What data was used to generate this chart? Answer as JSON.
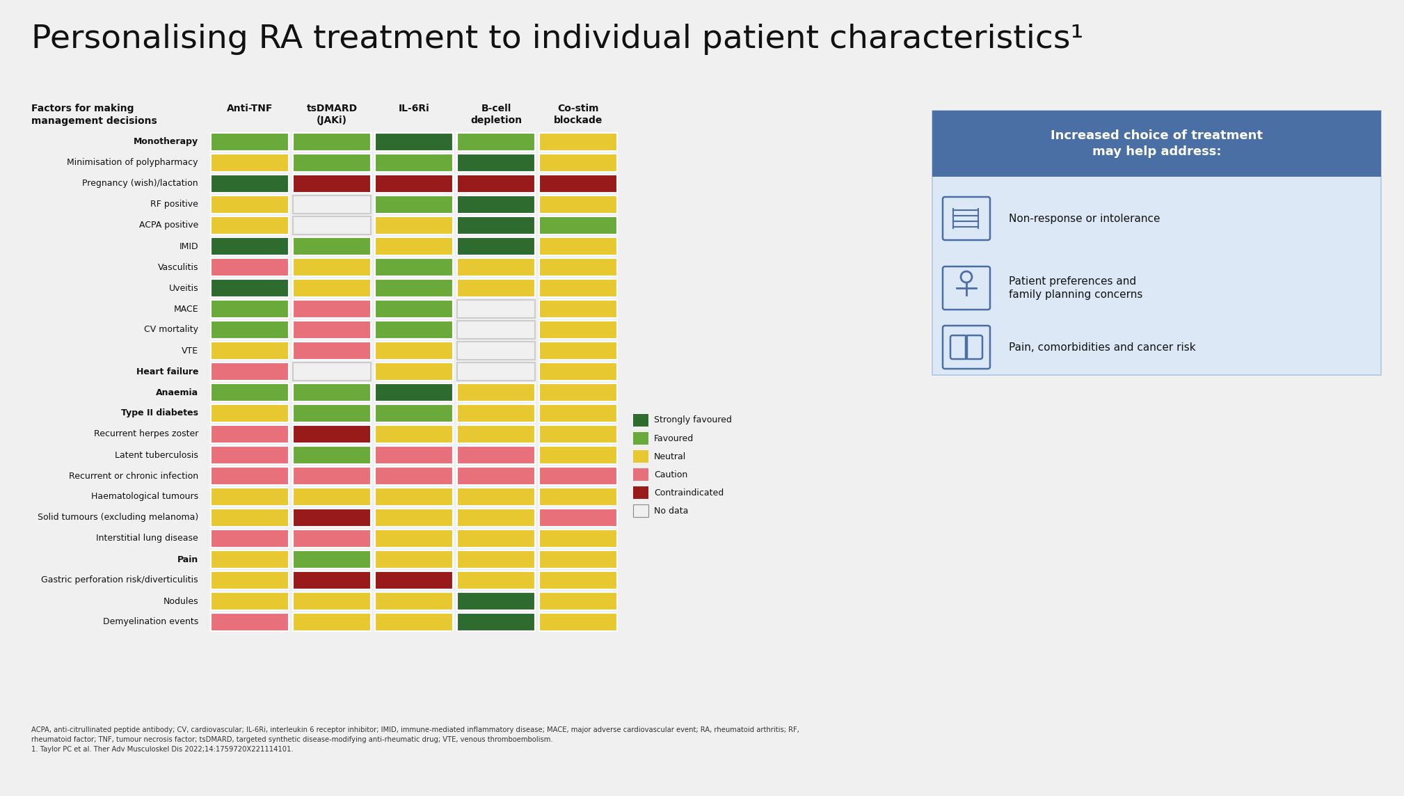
{
  "title": "Personalising RA treatment to individual patient characteristics¹",
  "background_color": "#f0f0f0",
  "col_headers": [
    "Anti-TNF",
    "tsDMARD\n(JAKi)",
    "IL-6Ri",
    "B-cell\ndepletion",
    "Co-stim\nblockade"
  ],
  "row_labels": [
    "Monotherapy",
    "Minimisation of polypharmacy",
    "Pregnancy (wish)/lactation",
    "RF positive",
    "ACPA positive",
    "IMID",
    "Vasculitis",
    "Uveitis",
    "MACE",
    "CV mortality",
    "VTE",
    "Heart failure",
    "Anaemia",
    "Type II diabetes",
    "Recurrent herpes zoster",
    "Latent tuberculosis",
    "Recurrent or chronic infection",
    "Haematological tumours",
    "Solid tumours (excluding melanoma)",
    "Interstitial lung disease",
    "Pain",
    "Gastric perforation risk/diverticulitis",
    "Nodules",
    "Demyelination events"
  ],
  "bold_rows": [
    0,
    11,
    12,
    13,
    20
  ],
  "colors": {
    "SF": "#2e6b2e",
    "F": "#6aaa3a",
    "N": "#e8c830",
    "C": "#e8707a",
    "CI": "#991a1a",
    "ND": "#f0f0f0"
  },
  "table_data": [
    [
      "F",
      "F",
      "SF",
      "F",
      "N"
    ],
    [
      "N",
      "F",
      "F",
      "SF",
      "N"
    ],
    [
      "SF",
      "CI",
      "CI",
      "CI",
      "CI"
    ],
    [
      "N",
      "ND",
      "F",
      "SF",
      "N"
    ],
    [
      "N",
      "ND",
      "N",
      "SF",
      "F"
    ],
    [
      "SF",
      "F",
      "N",
      "SF",
      "N"
    ],
    [
      "C",
      "N",
      "F",
      "N",
      "N"
    ],
    [
      "SF",
      "N",
      "F",
      "N",
      "N"
    ],
    [
      "F",
      "C",
      "F",
      "ND",
      "N"
    ],
    [
      "F",
      "C",
      "F",
      "ND",
      "N"
    ],
    [
      "N",
      "C",
      "N",
      "ND",
      "N"
    ],
    [
      "C",
      "ND",
      "N",
      "ND",
      "N"
    ],
    [
      "F",
      "F",
      "SF",
      "N",
      "N"
    ],
    [
      "N",
      "F",
      "F",
      "N",
      "N"
    ],
    [
      "C",
      "CI",
      "N",
      "N",
      "N"
    ],
    [
      "C",
      "F",
      "C",
      "C",
      "N"
    ],
    [
      "C",
      "C",
      "C",
      "C",
      "C"
    ],
    [
      "N",
      "N",
      "N",
      "N",
      "N"
    ],
    [
      "N",
      "CI",
      "N",
      "N",
      "C"
    ],
    [
      "C",
      "C",
      "N",
      "N",
      "N"
    ],
    [
      "N",
      "F",
      "N",
      "N",
      "N"
    ],
    [
      "N",
      "CI",
      "CI",
      "N",
      "N"
    ],
    [
      "N",
      "N",
      "N",
      "SF",
      "N"
    ],
    [
      "C",
      "N",
      "N",
      "SF",
      "N"
    ]
  ],
  "legend_items": [
    [
      "SF",
      "Strongly favoured"
    ],
    [
      "F",
      "Favoured"
    ],
    [
      "N",
      "Neutral"
    ],
    [
      "C",
      "Caution"
    ],
    [
      "CI",
      "Contraindicated"
    ],
    [
      "ND",
      "No data"
    ]
  ],
  "right_box_title": "Increased choice of treatment\nmay help address:",
  "right_box_items": [
    "Non-response or intolerance",
    "Patient preferences and\nfamily planning concerns",
    "Pain, comorbidities and cancer risk"
  ],
  "right_box_bg": "#dce8f5",
  "right_box_header_bg": "#4a6fa5",
  "footnote": "ACPA, anti-citrullinated peptide antibody; CV, cardiovascular; IL-6Ri, interleukin 6 receptor inhibitor; IMID, immune-mediated inflammatory disease; MACE, major adverse cardiovascular event; RA, rheumatoid arthritis; RF,\nrheumatoid factor; TNF, tumour necrosis factor; tsDMARD, targeted synthetic disease-modifying anti-rheumatic drug; VTE, venous thromboembolism.\n1. Taylor PC et al. Ther Adv Musculoskel Dis 2022;14:1759720X221114101."
}
